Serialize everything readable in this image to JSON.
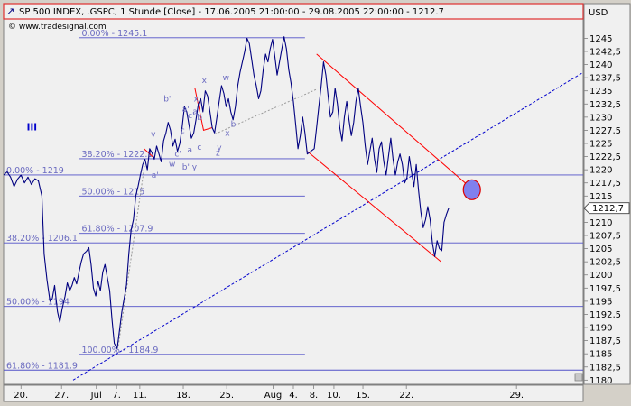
{
  "header": {
    "title": "SP 500 INDEX, .GSPC, 1 Stunde [Close] - 17.06.2005 21:00:00 - 29.08.2005 22:00:00 - 1212.7",
    "watermark": "© www.tradesignal.com",
    "currency": "USD"
  },
  "chart_data": {
    "type": "line",
    "title": "SP 500 INDEX, .GSPC, 1 Stunde [Close] - 17.06.2005 21:00:00 - 29.08.2005 22:00:00 - 1212.7",
    "ylabel": "USD",
    "ylim": [
      1180,
      1250
    ],
    "yticks": [
      1180,
      1182.5,
      1185,
      1187.5,
      1190,
      1192.5,
      1195,
      1197.5,
      1200,
      1202.5,
      1205,
      1207.5,
      1210,
      1212.5,
      1215,
      1217.5,
      1220,
      1222.5,
      1225,
      1227.5,
      1230,
      1232.5,
      1235,
      1237.5,
      1240,
      1242.5,
      1245
    ],
    "ytick_labels": [
      "1180",
      "1182,5",
      "1185",
      "1187,5",
      "1190",
      "1192,5",
      "1195",
      "1197,5",
      "1200",
      "1202,5",
      "1205",
      "1207,5",
      "1210",
      "1212,5",
      "1215",
      "1217,5",
      "1220",
      "1222,5",
      "1225",
      "1227,5",
      "1230",
      "1232,5",
      "1235",
      "1237,5",
      "1240",
      "1242,5",
      "1245"
    ],
    "xlim": [
      0,
      100
    ],
    "xticks": [
      {
        "x": 3,
        "label": "20."
      },
      {
        "x": 10,
        "label": "27."
      },
      {
        "x": 16,
        "label": "Jul"
      },
      {
        "x": 19.5,
        "label": "7."
      },
      {
        "x": 23.5,
        "label": "11."
      },
      {
        "x": 31,
        "label": "18."
      },
      {
        "x": 38.5,
        "label": "25."
      },
      {
        "x": 46.5,
        "label": "Aug"
      },
      {
        "x": 50,
        "label": "4."
      },
      {
        "x": 53.5,
        "label": "8."
      },
      {
        "x": 57,
        "label": "10."
      },
      {
        "x": 62,
        "label": "15."
      },
      {
        "x": 69.5,
        "label": "22."
      },
      {
        "x": 88.5,
        "label": "29."
      }
    ],
    "last_value": 1212.7,
    "last_value_label": "1212,7",
    "series": [
      {
        "color": "#000080",
        "points": [
          [
            0,
            1219
          ],
          [
            0.6,
            1219.6
          ],
          [
            1.2,
            1218.6
          ],
          [
            1.8,
            1216.8
          ],
          [
            2.4,
            1218.2
          ],
          [
            3,
            1219
          ],
          [
            3.6,
            1217.5
          ],
          [
            4.2,
            1218.6
          ],
          [
            4.8,
            1217.2
          ],
          [
            5.4,
            1218.3
          ],
          [
            6,
            1217.9
          ],
          [
            6.6,
            1215
          ],
          [
            7,
            1204
          ],
          [
            7.5,
            1199
          ],
          [
            8,
            1195
          ],
          [
            8.4,
            1195.5
          ],
          [
            8.8,
            1198
          ],
          [
            9.3,
            1193
          ],
          [
            9.7,
            1191
          ],
          [
            10.1,
            1193.5
          ],
          [
            10.6,
            1196
          ],
          [
            11,
            1198.5
          ],
          [
            11.4,
            1197
          ],
          [
            11.8,
            1198
          ],
          [
            12.2,
            1199.5
          ],
          [
            12.6,
            1198.3
          ],
          [
            13,
            1200.5
          ],
          [
            13.4,
            1202.5
          ],
          [
            13.8,
            1204
          ],
          [
            14.3,
            1204.5
          ],
          [
            14.7,
            1205.2
          ],
          [
            15.1,
            1202
          ],
          [
            15.5,
            1197.5
          ],
          [
            15.9,
            1196
          ],
          [
            16.3,
            1198.8
          ],
          [
            16.7,
            1197
          ],
          [
            17.1,
            1200.5
          ],
          [
            17.5,
            1202
          ],
          [
            17.9,
            1199.5
          ],
          [
            18.3,
            1197
          ],
          [
            18.7,
            1191.5
          ],
          [
            19.1,
            1187
          ],
          [
            19.6,
            1186
          ],
          [
            20,
            1189.5
          ],
          [
            20.4,
            1193
          ],
          [
            20.8,
            1195.5
          ],
          [
            21.2,
            1198
          ],
          [
            21.6,
            1204
          ],
          [
            22,
            1208.5
          ],
          [
            22.4,
            1210.5
          ],
          [
            22.8,
            1215
          ],
          [
            23.2,
            1216.8
          ],
          [
            23.6,
            1219
          ],
          [
            24,
            1221
          ],
          [
            24.4,
            1222
          ],
          [
            24.8,
            1220
          ],
          [
            25.2,
            1224
          ],
          [
            25.6,
            1223.2
          ],
          [
            26,
            1222
          ],
          [
            26.4,
            1224.5
          ],
          [
            26.8,
            1223
          ],
          [
            27.2,
            1221.5
          ],
          [
            27.6,
            1225.5
          ],
          [
            28,
            1227
          ],
          [
            28.4,
            1229
          ],
          [
            28.8,
            1227.5
          ],
          [
            29.2,
            1224.5
          ],
          [
            29.6,
            1225.8
          ],
          [
            30,
            1223.5
          ],
          [
            30.4,
            1225
          ],
          [
            30.8,
            1228
          ],
          [
            31.2,
            1232
          ],
          [
            31.6,
            1231
          ],
          [
            32,
            1228.5
          ],
          [
            32.4,
            1226
          ],
          [
            32.8,
            1227
          ],
          [
            33.2,
            1229.5
          ],
          [
            33.6,
            1232.5
          ],
          [
            34,
            1233.5
          ],
          [
            34.4,
            1231
          ],
          [
            34.8,
            1235
          ],
          [
            35.2,
            1234
          ],
          [
            35.6,
            1231
          ],
          [
            36,
            1228
          ],
          [
            36.4,
            1227
          ],
          [
            36.8,
            1230
          ],
          [
            37.2,
            1233
          ],
          [
            37.6,
            1236
          ],
          [
            38,
            1234.5
          ],
          [
            38.4,
            1232
          ],
          [
            38.8,
            1233.5
          ],
          [
            39.2,
            1231
          ],
          [
            39.6,
            1229.5
          ],
          [
            40,
            1232
          ],
          [
            40.4,
            1236
          ],
          [
            40.8,
            1238.5
          ],
          [
            41.2,
            1240.5
          ],
          [
            41.6,
            1242.5
          ],
          [
            42,
            1245
          ],
          [
            42.4,
            1244
          ],
          [
            42.8,
            1241
          ],
          [
            43.2,
            1238
          ],
          [
            43.6,
            1236
          ],
          [
            44,
            1233.5
          ],
          [
            44.4,
            1235
          ],
          [
            44.8,
            1239
          ],
          [
            45.2,
            1242
          ],
          [
            45.6,
            1240.5
          ],
          [
            46,
            1243
          ],
          [
            46.4,
            1244.8
          ],
          [
            46.8,
            1241.5
          ],
          [
            47.2,
            1238
          ],
          [
            47.6,
            1240.5
          ],
          [
            48,
            1243
          ],
          [
            48.4,
            1245.3
          ],
          [
            48.8,
            1243
          ],
          [
            49.2,
            1239
          ],
          [
            49.6,
            1236.5
          ],
          [
            50,
            1233
          ],
          [
            50.4,
            1228.5
          ],
          [
            50.8,
            1224
          ],
          [
            51.2,
            1226.5
          ],
          [
            51.6,
            1230
          ],
          [
            52,
            1227
          ],
          [
            52.4,
            1223
          ],
          [
            53.6,
            1224
          ],
          [
            54,
            1228
          ],
          [
            54.4,
            1232
          ],
          [
            54.8,
            1236
          ],
          [
            55.2,
            1240.5
          ],
          [
            55.6,
            1238
          ],
          [
            56,
            1234
          ],
          [
            56.4,
            1230
          ],
          [
            56.8,
            1231
          ],
          [
            57.2,
            1235.5
          ],
          [
            57.6,
            1232.5
          ],
          [
            58,
            1228
          ],
          [
            58.4,
            1225.5
          ],
          [
            58.8,
            1230
          ],
          [
            59.2,
            1233
          ],
          [
            59.6,
            1229.5
          ],
          [
            60,
            1226.5
          ],
          [
            60.4,
            1229
          ],
          [
            60.8,
            1233
          ],
          [
            61.2,
            1235.5
          ],
          [
            61.6,
            1232
          ],
          [
            62,
            1229
          ],
          [
            62.4,
            1224.5
          ],
          [
            62.8,
            1221
          ],
          [
            63.2,
            1223.5
          ],
          [
            63.6,
            1226
          ],
          [
            64,
            1222
          ],
          [
            64.4,
            1219.5
          ],
          [
            64.8,
            1224
          ],
          [
            65.2,
            1225.3
          ],
          [
            65.6,
            1221.5
          ],
          [
            66,
            1219
          ],
          [
            66.4,
            1222.5
          ],
          [
            66.8,
            1226
          ],
          [
            67.2,
            1222
          ],
          [
            67.6,
            1219
          ],
          [
            68,
            1221.5
          ],
          [
            68.4,
            1223
          ],
          [
            68.8,
            1221
          ],
          [
            69.2,
            1217.5
          ],
          [
            69.6,
            1218.5
          ],
          [
            70,
            1222.5
          ],
          [
            70.4,
            1219.5
          ],
          [
            70.8,
            1216.8
          ],
          [
            71.2,
            1221
          ],
          [
            71.6,
            1216
          ],
          [
            72,
            1212
          ],
          [
            72.4,
            1209
          ],
          [
            72.8,
            1210.5
          ],
          [
            73.2,
            1213
          ],
          [
            73.6,
            1210.5
          ],
          [
            74,
            1206
          ],
          [
            74.4,
            1203.5
          ],
          [
            74.8,
            1206.5
          ],
          [
            75.2,
            1205
          ],
          [
            75.6,
            1204.6
          ],
          [
            76,
            1210
          ],
          [
            76.4,
            1211.5
          ],
          [
            76.8,
            1212.7
          ]
        ]
      }
    ],
    "fibonacci_sets": [
      {
        "levels": [
          {
            "label": "0.00% - 1219",
            "value": 1219
          },
          {
            "label": "38.20% - 1206.1",
            "value": 1206.1
          },
          {
            "label": "50.00% - 1194",
            "value": 1194
          },
          {
            "label": "61.80% - 1181.9",
            "value": 1181.9
          }
        ]
      },
      {
        "levels": [
          {
            "label": "0.00% - 1245.1",
            "value": 1245.1
          },
          {
            "label": "38.20% - 1222.1",
            "value": 1222.1
          },
          {
            "label": "50.00% - 1215",
            "value": 1215
          },
          {
            "label": "61.80% - 1207.9",
            "value": 1207.9
          },
          {
            "label": "100.00% - 1184.9",
            "value": 1184.9
          }
        ]
      }
    ],
    "wave_labels": [
      {
        "text": "iii",
        "x": 4,
        "y": 1227.5,
        "bold": true
      },
      {
        "text": "v",
        "x": 25.4,
        "y": 1226.3
      },
      {
        "text": "b'",
        "x": 27.6,
        "y": 1233
      },
      {
        "text": "a'",
        "x": 30.8,
        "y": 1231
      },
      {
        "text": "x",
        "x": 32.8,
        "y": 1233
      },
      {
        "text": "c'",
        "x": 31.8,
        "y": 1229.8
      },
      {
        "text": "a",
        "x": 32.6,
        "y": 1230.6
      },
      {
        "text": "b",
        "x": 33.4,
        "y": 1229.5
      },
      {
        "text": "x",
        "x": 34.2,
        "y": 1236.5
      },
      {
        "text": "w",
        "x": 37.8,
        "y": 1237
      },
      {
        "text": "b'",
        "x": 39.2,
        "y": 1228.2
      },
      {
        "text": "x",
        "x": 38.2,
        "y": 1226.5
      },
      {
        "text": "y",
        "x": 36.8,
        "y": 1223.7
      },
      {
        "text": "c",
        "x": 33.4,
        "y": 1223.8
      },
      {
        "text": "z",
        "x": 36.6,
        "y": 1222.7
      },
      {
        "text": "a",
        "x": 31.7,
        "y": 1223.3
      },
      {
        "text": "c'",
        "x": 29.5,
        "y": 1222.5
      },
      {
        "text": "w",
        "x": 28.5,
        "y": 1220.6
      },
      {
        "text": "b' y",
        "x": 30.8,
        "y": 1220
      },
      {
        "text": "a'",
        "x": 25.5,
        "y": 1218.5
      },
      {
        "text": "c",
        "x": 30.5,
        "y": 1227
      }
    ],
    "trendlines": [
      {
        "color": "#0000cc",
        "dash": "3,2",
        "points": [
          [
            12,
            1180
          ],
          [
            100,
            1238.5
          ]
        ]
      },
      {
        "color": "#ff0000",
        "dash": "",
        "points": [
          [
            54,
            1242
          ],
          [
            81,
            1216.2
          ]
        ]
      },
      {
        "color": "#ff0000",
        "dash": "",
        "points": [
          [
            52.4,
            1223.5
          ],
          [
            75.5,
            1202.5
          ]
        ]
      },
      {
        "color": "#999999",
        "dash": "2,2",
        "points": [
          [
            36.5,
            1226.8
          ],
          [
            54,
            1235.3
          ]
        ]
      },
      {
        "color": "#999999",
        "dash": "2,2",
        "points": [
          [
            19.8,
            1186.5
          ],
          [
            24.3,
            1220.7
          ]
        ]
      },
      {
        "color": "#ff0000",
        "dash": "",
        "points": [
          [
            24.2,
            1224
          ],
          [
            26,
            1222.2
          ]
        ]
      },
      {
        "color": "#ff0000",
        "dash": "",
        "points": [
          [
            33,
            1235.5
          ],
          [
            34.5,
            1227.5
          ],
          [
            36,
            1228
          ]
        ]
      }
    ],
    "ellipse": {
      "x": 80.8,
      "y": 1216.2,
      "fill": "#8080ee",
      "stroke": "#dd0000"
    }
  }
}
